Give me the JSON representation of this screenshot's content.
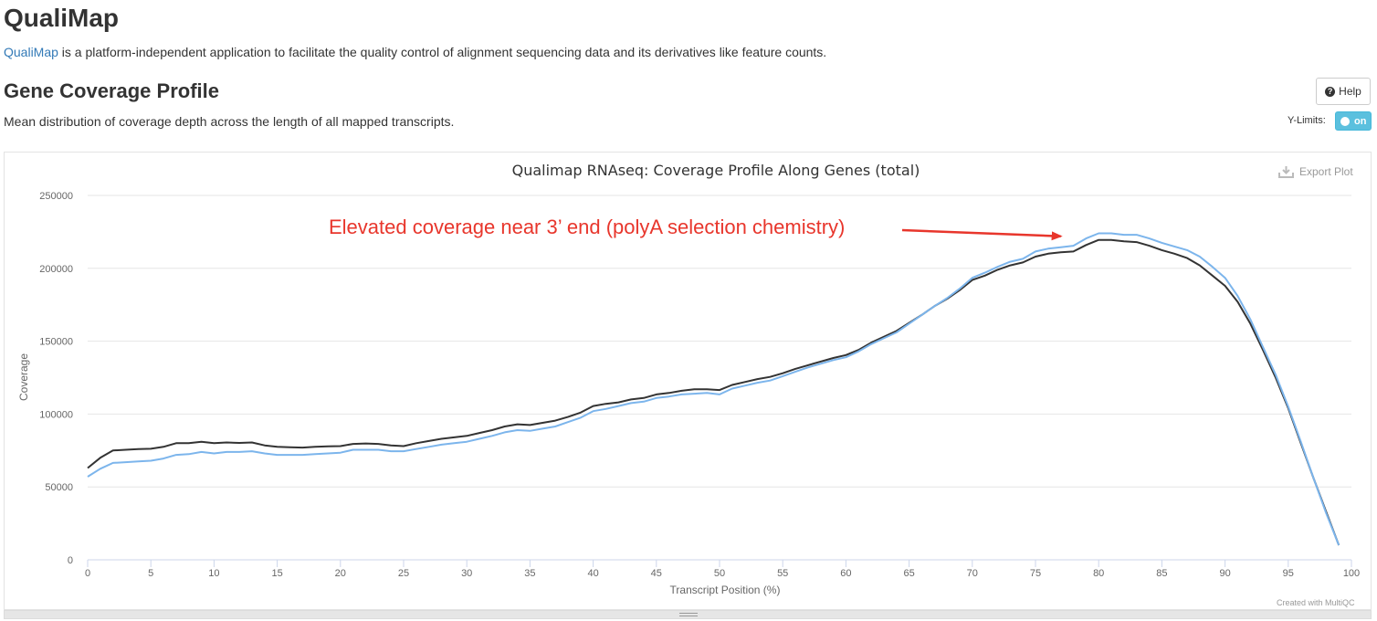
{
  "header": {
    "app_title": "QualiMap",
    "intro_link": "QualiMap",
    "intro_text": " is a platform-independent application to facilitate the quality control of alignment sequencing data and its derivatives like feature counts."
  },
  "section": {
    "title": "Gene Coverage Profile",
    "description": "Mean distribution of coverage depth across the length of all mapped transcripts.",
    "help_label": "Help",
    "ylimits_label": "Y-Limits:",
    "ylimits_toggle": "on"
  },
  "plot_controls": {
    "export_label": "Export Plot",
    "credit": "Created with MultiQC"
  },
  "colors": {
    "series_dark": "#333333",
    "series_light": "#7cb5ec",
    "annotation": "#e8362c"
  },
  "chart_data": {
    "type": "line",
    "title": "Qualimap RNAseq: Coverage Profile Along Genes (total)",
    "xlabel": "Transcript Position (%)",
    "ylabel": "Coverage",
    "xlim": [
      0,
      100
    ],
    "ylim": [
      0,
      250000
    ],
    "x_ticks": [
      0,
      5,
      10,
      15,
      20,
      25,
      30,
      35,
      40,
      45,
      50,
      55,
      60,
      65,
      70,
      75,
      80,
      85,
      90,
      95,
      100
    ],
    "y_ticks": [
      0,
      50000,
      100000,
      150000,
      200000,
      250000
    ],
    "grid": true,
    "legend": "none",
    "annotation": {
      "text": "Elevated coverage near 3’ end (polyA selection chemistry)",
      "points_to": [
        77,
        222000
      ]
    },
    "series": [
      {
        "color": "#333333",
        "points": [
          [
            0,
            63000
          ],
          [
            1,
            70000
          ],
          [
            2,
            75000
          ],
          [
            3,
            75500
          ],
          [
            4,
            76000
          ],
          [
            5,
            76200
          ],
          [
            6,
            77500
          ],
          [
            7,
            80000
          ],
          [
            8,
            80000
          ],
          [
            9,
            81000
          ],
          [
            10,
            80000
          ],
          [
            11,
            80500
          ],
          [
            12,
            80200
          ],
          [
            13,
            80500
          ],
          [
            14,
            78500
          ],
          [
            15,
            77500
          ],
          [
            16,
            77200
          ],
          [
            17,
            77000
          ],
          [
            18,
            77500
          ],
          [
            19,
            77800
          ],
          [
            20,
            78000
          ],
          [
            21,
            79500
          ],
          [
            22,
            79800
          ],
          [
            23,
            79500
          ],
          [
            24,
            78500
          ],
          [
            25,
            78000
          ],
          [
            26,
            80000
          ],
          [
            27,
            81500
          ],
          [
            28,
            83000
          ],
          [
            29,
            84000
          ],
          [
            30,
            85000
          ],
          [
            31,
            87000
          ],
          [
            32,
            89000
          ],
          [
            33,
            91500
          ],
          [
            34,
            93000
          ],
          [
            35,
            92500
          ],
          [
            36,
            94000
          ],
          [
            37,
            95500
          ],
          [
            38,
            98000
          ],
          [
            39,
            101000
          ],
          [
            40,
            105500
          ],
          [
            41,
            107000
          ],
          [
            42,
            108000
          ],
          [
            43,
            110000
          ],
          [
            44,
            111000
          ],
          [
            45,
            113500
          ],
          [
            46,
            114500
          ],
          [
            47,
            116000
          ],
          [
            48,
            117000
          ],
          [
            49,
            117000
          ],
          [
            50,
            116500
          ],
          [
            51,
            120000
          ],
          [
            52,
            122000
          ],
          [
            53,
            124000
          ],
          [
            54,
            125500
          ],
          [
            55,
            128000
          ],
          [
            56,
            131000
          ],
          [
            57,
            133500
          ],
          [
            58,
            136000
          ],
          [
            59,
            138500
          ],
          [
            60,
            140500
          ],
          [
            61,
            144000
          ],
          [
            62,
            149000
          ],
          [
            63,
            153000
          ],
          [
            64,
            157000
          ],
          [
            65,
            162500
          ],
          [
            66,
            168000
          ],
          [
            67,
            174000
          ],
          [
            68,
            179000
          ],
          [
            69,
            185000
          ],
          [
            70,
            192000
          ],
          [
            71,
            195000
          ],
          [
            72,
            199000
          ],
          [
            73,
            202000
          ],
          [
            74,
            204000
          ],
          [
            75,
            208000
          ],
          [
            76,
            210000
          ],
          [
            77,
            211000
          ],
          [
            78,
            211500
          ],
          [
            79,
            216000
          ],
          [
            80,
            219500
          ],
          [
            81,
            219500
          ],
          [
            82,
            218500
          ],
          [
            83,
            218000
          ],
          [
            84,
            215500
          ],
          [
            85,
            212500
          ],
          [
            86,
            210000
          ],
          [
            87,
            207000
          ],
          [
            88,
            202000
          ],
          [
            89,
            195000
          ],
          [
            90,
            188000
          ],
          [
            91,
            177000
          ],
          [
            92,
            162000
          ],
          [
            93,
            144000
          ],
          [
            94,
            125000
          ],
          [
            95,
            104000
          ],
          [
            96,
            80000
          ],
          [
            97,
            56000
          ],
          [
            98,
            33000
          ],
          [
            99,
            10000
          ]
        ]
      },
      {
        "color": "#7cb5ec",
        "points": [
          [
            0,
            57000
          ],
          [
            1,
            62500
          ],
          [
            2,
            66500
          ],
          [
            3,
            67000
          ],
          [
            4,
            67500
          ],
          [
            5,
            68000
          ],
          [
            6,
            69500
          ],
          [
            7,
            72000
          ],
          [
            8,
            72500
          ],
          [
            9,
            74000
          ],
          [
            10,
            73000
          ],
          [
            11,
            74000
          ],
          [
            12,
            74000
          ],
          [
            13,
            74500
          ],
          [
            14,
            73000
          ],
          [
            15,
            72000
          ],
          [
            16,
            72000
          ],
          [
            17,
            72000
          ],
          [
            18,
            72500
          ],
          [
            19,
            73000
          ],
          [
            20,
            73500
          ],
          [
            21,
            75500
          ],
          [
            22,
            75500
          ],
          [
            23,
            75500
          ],
          [
            24,
            74500
          ],
          [
            25,
            74500
          ],
          [
            26,
            76000
          ],
          [
            27,
            77500
          ],
          [
            28,
            79000
          ],
          [
            29,
            80000
          ],
          [
            30,
            81000
          ],
          [
            31,
            83000
          ],
          [
            32,
            85000
          ],
          [
            33,
            87500
          ],
          [
            34,
            89000
          ],
          [
            35,
            88500
          ],
          [
            36,
            90000
          ],
          [
            37,
            91500
          ],
          [
            38,
            94500
          ],
          [
            39,
            97500
          ],
          [
            40,
            102000
          ],
          [
            41,
            103500
          ],
          [
            42,
            105500
          ],
          [
            43,
            107500
          ],
          [
            44,
            108500
          ],
          [
            45,
            111000
          ],
          [
            46,
            112000
          ],
          [
            47,
            113500
          ],
          [
            48,
            114000
          ],
          [
            49,
            114500
          ],
          [
            50,
            113500
          ],
          [
            51,
            117500
          ],
          [
            52,
            119500
          ],
          [
            53,
            121500
          ],
          [
            54,
            123000
          ],
          [
            55,
            126000
          ],
          [
            56,
            129000
          ],
          [
            57,
            132000
          ],
          [
            58,
            134500
          ],
          [
            59,
            137000
          ],
          [
            60,
            139000
          ],
          [
            61,
            143000
          ],
          [
            62,
            148000
          ],
          [
            63,
            152000
          ],
          [
            64,
            156000
          ],
          [
            65,
            162000
          ],
          [
            66,
            168000
          ],
          [
            67,
            174000
          ],
          [
            68,
            179500
          ],
          [
            69,
            186000
          ],
          [
            70,
            193500
          ],
          [
            71,
            197000
          ],
          [
            72,
            201000
          ],
          [
            73,
            204500
          ],
          [
            74,
            206500
          ],
          [
            75,
            211500
          ],
          [
            76,
            213500
          ],
          [
            77,
            214500
          ],
          [
            78,
            215500
          ],
          [
            79,
            220500
          ],
          [
            80,
            224000
          ],
          [
            81,
            224000
          ],
          [
            82,
            223000
          ],
          [
            83,
            223000
          ],
          [
            84,
            220500
          ],
          [
            85,
            217500
          ],
          [
            86,
            215000
          ],
          [
            87,
            212500
          ],
          [
            88,
            208000
          ],
          [
            89,
            201000
          ],
          [
            90,
            193500
          ],
          [
            91,
            181000
          ],
          [
            92,
            165000
          ],
          [
            93,
            146000
          ],
          [
            94,
            127000
          ],
          [
            95,
            105000
          ],
          [
            96,
            81000
          ],
          [
            97,
            56000
          ],
          [
            98,
            32000
          ],
          [
            99,
            10000
          ]
        ]
      }
    ]
  }
}
